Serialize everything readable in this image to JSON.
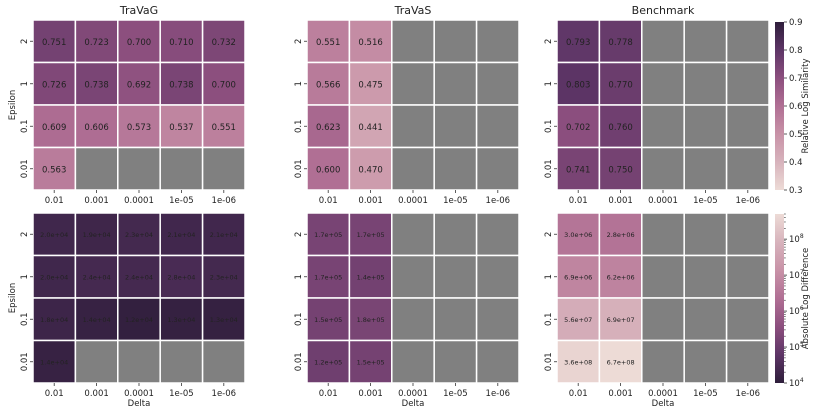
{
  "chart_data": {
    "type": "heatmap",
    "x_axis_label": "Delta",
    "y_axis_label": "Epsilon",
    "x_categories": [
      "0.01",
      "0.001",
      "0.0001",
      "1e-05",
      "1e-06"
    ],
    "y_categories": [
      "2",
      "1",
      "0.1",
      "0.01"
    ],
    "titles": [
      "TraVaG",
      "TraVaS",
      "Benchmark"
    ],
    "missing_color": "#808080",
    "rows": [
      {
        "colorbar": {
          "label": "Relative Log Similarity",
          "scale": "linear",
          "vmin": 0.3,
          "vmax": 0.9,
          "ticks": [
            "0.9",
            "0.8",
            "0.7",
            "0.6",
            "0.5",
            "0.4",
            "0.3"
          ],
          "colors": [
            "#eddbd6",
            "#d7b3bc",
            "#c892a7",
            "#b06f94",
            "#8c4f7e",
            "#5d3566",
            "#2e1e3b"
          ]
        },
        "panels": [
          {
            "values": [
              [
                0.751,
                0.723,
                0.7,
                0.71,
                0.732
              ],
              [
                0.726,
                0.738,
                0.692,
                0.738,
                0.7
              ],
              [
                0.609,
                0.606,
                0.573,
                0.537,
                0.551
              ],
              [
                0.563,
                null,
                null,
                null,
                null
              ]
            ],
            "labels": [
              [
                "0.751",
                "0.723",
                "0.700",
                "0.710",
                "0.732"
              ],
              [
                "0.726",
                "0.738",
                "0.692",
                "0.738",
                "0.700"
              ],
              [
                "0.609",
                "0.606",
                "0.573",
                "0.537",
                "0.551"
              ],
              [
                "0.563",
                "",
                "",
                "",
                ""
              ]
            ]
          },
          {
            "values": [
              [
                0.551,
                0.516,
                null,
                null,
                null
              ],
              [
                0.566,
                0.475,
                null,
                null,
                null
              ],
              [
                0.623,
                0.441,
                null,
                null,
                null
              ],
              [
                0.6,
                0.47,
                null,
                null,
                null
              ]
            ],
            "labels": [
              [
                "0.551",
                "0.516",
                "",
                "",
                ""
              ],
              [
                "0.566",
                "0.475",
                "",
                "",
                ""
              ],
              [
                "0.623",
                "0.441",
                "",
                "",
                ""
              ],
              [
                "0.600",
                "0.470",
                "",
                "",
                ""
              ]
            ]
          },
          {
            "values": [
              [
                0.793,
                0.778,
                null,
                null,
                null
              ],
              [
                0.803,
                0.77,
                null,
                null,
                null
              ],
              [
                0.702,
                0.76,
                null,
                null,
                null
              ],
              [
                0.741,
                0.75,
                null,
                null,
                null
              ]
            ],
            "labels": [
              [
                "0.793",
                "0.778",
                "",
                "",
                ""
              ],
              [
                "0.803",
                "0.770",
                "",
                "",
                ""
              ],
              [
                "0.702",
                "0.760",
                "",
                "",
                ""
              ],
              [
                "0.741",
                "0.750",
                "",
                "",
                ""
              ]
            ]
          }
        ]
      },
      {
        "colorbar": {
          "label": "Absolute Log Difference",
          "scale": "log",
          "vmin": 10000,
          "vmax": 500000000,
          "ticks": [
            {
              "base": "10",
              "exp": "8",
              "value": 100000000
            },
            {
              "base": "10",
              "exp": "7",
              "value": 10000000
            },
            {
              "base": "10",
              "exp": "6",
              "value": 1000000
            },
            {
              "base": "10",
              "exp": "5",
              "value": 100000
            },
            {
              "base": "10",
              "exp": "4",
              "value": 10000
            }
          ],
          "colors": [
            "#2e1e3b",
            "#5d3566",
            "#8c4f7e",
            "#b06f94",
            "#c892a7",
            "#d7b3bc",
            "#eddbd6"
          ]
        },
        "panels": [
          {
            "values": [
              [
                20000,
                19000,
                23000,
                21000,
                21000
              ],
              [
                20000,
                24000,
                24000,
                28000,
                23000
              ],
              [
                18000,
                14000,
                12000,
                13000,
                13000
              ],
              [
                14000,
                null,
                null,
                null,
                null
              ]
            ],
            "labels": [
              [
                "2.0e+04",
                "1.9e+04",
                "2.3e+04",
                "2.1e+04",
                "2.1e+04"
              ],
              [
                "2.0e+04",
                "2.4e+04",
                "2.4e+04",
                "2.8e+04",
                "2.3e+04"
              ],
              [
                "1.8e+04",
                "1.4e+04",
                "1.2e+04",
                "1.3e+04",
                "1.3e+04"
              ],
              [
                "1.4e+04",
                "",
                "",
                "",
                ""
              ]
            ]
          },
          {
            "values": [
              [
                170000,
                170000,
                null,
                null,
                null
              ],
              [
                170000,
                140000,
                null,
                null,
                null
              ],
              [
                150000,
                180000,
                null,
                null,
                null
              ],
              [
                120000,
                150000,
                null,
                null,
                null
              ]
            ],
            "labels": [
              [
                "1.7e+05",
                "1.7e+05",
                "",
                "",
                ""
              ],
              [
                "1.7e+05",
                "1.4e+05",
                "",
                "",
                ""
              ],
              [
                "1.5e+05",
                "1.8e+05",
                "",
                "",
                ""
              ],
              [
                "1.2e+05",
                "1.5e+05",
                "",
                "",
                ""
              ]
            ]
          },
          {
            "values": [
              [
                3000000,
                2800000,
                null,
                null,
                null
              ],
              [
                6900000,
                6200000,
                null,
                null,
                null
              ],
              [
                56000000,
                69000000,
                null,
                null,
                null
              ],
              [
                360000000,
                670000000,
                null,
                null,
                null
              ]
            ],
            "labels": [
              [
                "3.0e+06",
                "2.8e+06",
                "",
                "",
                ""
              ],
              [
                "6.9e+06",
                "6.2e+06",
                "",
                "",
                ""
              ],
              [
                "5.6e+07",
                "6.9e+07",
                "",
                "",
                ""
              ],
              [
                "3.6e+08",
                "6.7e+08",
                "",
                "",
                ""
              ]
            ]
          }
        ]
      }
    ]
  }
}
